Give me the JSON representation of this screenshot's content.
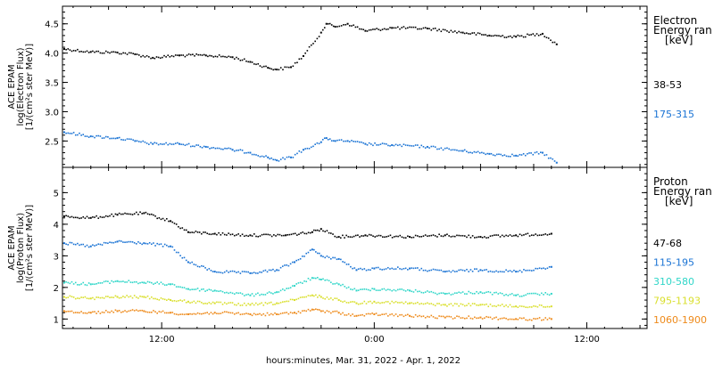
{
  "xlabel": "hours:minutes, Mar. 31, 2022 - Apr. 1, 2022",
  "x_ticks": [
    "12:00",
    "0:00",
    "12:00"
  ],
  "x_tick_hours": [
    12,
    24,
    36
  ],
  "x_range_hours": [
    6.4,
    39.4
  ],
  "chart_data": [
    {
      "type": "scatter",
      "ylabel": [
        "ACE EPAM",
        "log(Electron Flux)",
        "[1/(cm²s ster MeV)]"
      ],
      "ylim": [
        2.05,
        4.8
      ],
      "y_ticks": [
        2.5,
        3.0,
        3.5,
        4.0,
        4.5
      ],
      "legend_title": [
        "Electron",
        "Energy ran",
        "[keV]"
      ],
      "series": [
        {
          "name": "38-53",
          "color": "#000000",
          "x": [
            6.5,
            8,
            9.5,
            10.5,
            11.5,
            13,
            14.5,
            16,
            17,
            18,
            18.5,
            19.3,
            20,
            21,
            21.3,
            21.8,
            22.5,
            23.5,
            25,
            27,
            29,
            30.5,
            32,
            33.5,
            34.3
          ],
          "y": [
            4.07,
            4.02,
            4.01,
            3.98,
            3.92,
            3.96,
            3.96,
            3.93,
            3.85,
            3.75,
            3.72,
            3.76,
            3.95,
            4.35,
            4.5,
            4.45,
            4.5,
            4.38,
            4.43,
            4.42,
            4.35,
            4.3,
            4.28,
            4.33,
            4.15
          ]
        },
        {
          "name": "175-315",
          "color": "#1a73d4",
          "x": [
            6.5,
            8,
            9.5,
            10.5,
            11.5,
            13,
            14.5,
            16,
            17,
            18,
            18.5,
            19.3,
            20,
            21,
            21.3,
            21.8,
            22.5,
            23.5,
            25,
            27,
            29,
            30.5,
            32,
            33.5,
            34.3
          ],
          "y": [
            2.65,
            2.58,
            2.55,
            2.5,
            2.45,
            2.45,
            2.4,
            2.35,
            2.3,
            2.22,
            2.17,
            2.22,
            2.35,
            2.48,
            2.55,
            2.5,
            2.5,
            2.45,
            2.43,
            2.4,
            2.33,
            2.28,
            2.25,
            2.3,
            2.13
          ]
        }
      ]
    },
    {
      "type": "scatter",
      "ylabel": [
        "ACE EPAM",
        "log(Proton Flux)",
        "[1/(cm²s ster MeV)]"
      ],
      "ylim": [
        0.7,
        5.8
      ],
      "y_ticks": [
        1,
        2,
        3,
        4,
        5
      ],
      "legend_title": [
        "Proton",
        "Energy ran",
        "[keV]"
      ],
      "series": [
        {
          "name": "47-68",
          "color": "#000000",
          "x": [
            6.5,
            8,
            9.5,
            11,
            12.5,
            13.5,
            15,
            17,
            19,
            20.5,
            21,
            22,
            23.5,
            26,
            28,
            30,
            32,
            34
          ],
          "y": [
            4.25,
            4.2,
            4.3,
            4.35,
            4.1,
            3.75,
            3.7,
            3.65,
            3.65,
            3.75,
            3.85,
            3.6,
            3.65,
            3.6,
            3.65,
            3.6,
            3.65,
            3.7
          ]
        },
        {
          "name": "115-195",
          "color": "#1a73d4",
          "x": [
            6.5,
            8,
            9.5,
            11,
            12.5,
            13.5,
            15,
            17,
            18.5,
            19.5,
            20.5,
            21,
            22,
            23,
            24,
            26,
            28,
            30,
            32,
            34
          ],
          "y": [
            3.4,
            3.3,
            3.45,
            3.4,
            3.3,
            2.8,
            2.5,
            2.45,
            2.55,
            2.8,
            3.2,
            3.0,
            2.9,
            2.55,
            2.6,
            2.6,
            2.5,
            2.55,
            2.5,
            2.65
          ]
        },
        {
          "name": "310-580",
          "color": "#2fd6c8",
          "x": [
            6.5,
            8,
            9.5,
            11,
            12.5,
            13.5,
            15,
            17,
            18.5,
            19.5,
            20.5,
            21,
            22,
            23,
            24,
            26,
            28,
            30,
            32,
            34
          ],
          "y": [
            2.15,
            2.1,
            2.2,
            2.15,
            2.1,
            1.95,
            1.9,
            1.75,
            1.85,
            2.05,
            2.3,
            2.25,
            2.1,
            1.9,
            1.95,
            1.9,
            1.8,
            1.85,
            1.75,
            1.8
          ]
        },
        {
          "name": "795-1193",
          "color": "#d9df2c",
          "x": [
            6.5,
            8,
            9.5,
            11,
            12.5,
            13.5,
            15,
            17,
            18.5,
            19.5,
            20.5,
            21,
            22,
            23,
            24,
            26,
            28,
            30,
            32,
            34
          ],
          "y": [
            1.7,
            1.65,
            1.7,
            1.7,
            1.6,
            1.55,
            1.5,
            1.45,
            1.5,
            1.6,
            1.75,
            1.7,
            1.6,
            1.5,
            1.55,
            1.5,
            1.45,
            1.45,
            1.4,
            1.4
          ]
        },
        {
          "name": "1060-1900",
          "color": "#ee8a1a",
          "x": [
            6.5,
            8,
            9.5,
            11,
            12.5,
            13.5,
            15,
            17,
            18.5,
            19.5,
            20.5,
            21,
            22,
            23,
            24,
            26,
            28,
            30,
            32,
            34
          ],
          "y": [
            1.25,
            1.2,
            1.25,
            1.25,
            1.2,
            1.15,
            1.2,
            1.15,
            1.15,
            1.2,
            1.3,
            1.25,
            1.2,
            1.1,
            1.15,
            1.1,
            1.05,
            1.05,
            1.0,
            1.0
          ]
        }
      ]
    }
  ]
}
